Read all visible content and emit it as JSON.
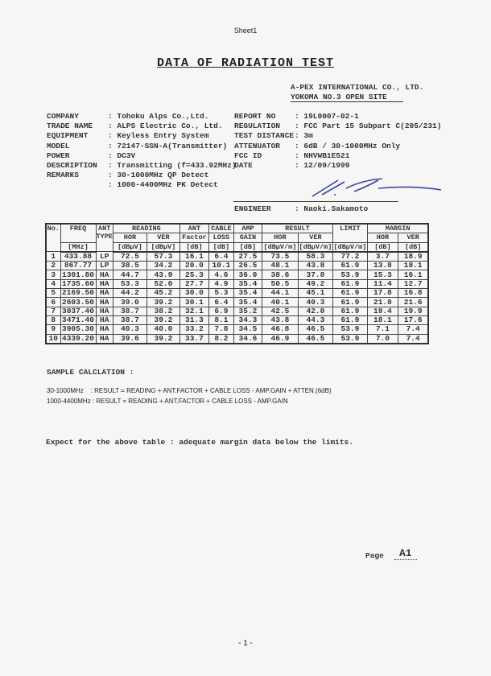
{
  "sheet": "Sheet1",
  "title": "DATA OF RADIATION TEST",
  "lab": {
    "name": "A-PEX INTERNATIONAL CO., LTD.",
    "site": "YOKOMA NO.3 OPEN SITE"
  },
  "left_info": [
    {
      "label": "COMPANY",
      "value": ": Tohoku Alps Co.,Ltd."
    },
    {
      "label": "TRADE NAME",
      "value": ": ALPS Electric Co., Ltd."
    },
    {
      "label": "EQUIPMENT",
      "value": ": Keyless Entry System"
    },
    {
      "label": "MODEL",
      "value": ": 72147-SSN-A(Transmitter)"
    },
    {
      "label": "POWER",
      "value": ": DC3V"
    },
    {
      "label": "DESCRIPTION",
      "value": ": Transmitting (f=433.92MHz)"
    },
    {
      "label": "REMARKS",
      "value": ": 30-1000MHz QP Detect"
    },
    {
      "label": "",
      "value": ": 1000-4400MHz PK Detect"
    }
  ],
  "right_info": [
    {
      "label": "REPORT NO",
      "value": ": 19L0007-02-1"
    },
    {
      "label": "REGULATION",
      "value": ": FCC Part 15 Subpart C(205/231)"
    },
    {
      "label": "TEST DISTANCE",
      "value": ": 3m"
    },
    {
      "label": "ATTENUATOR",
      "value": ": 6dB / 30-1000MHz Only"
    },
    {
      "label": "FCC ID",
      "value": ": NHVWB1E521"
    },
    {
      "label": "DATE",
      "value": ": 12/09/1999"
    }
  ],
  "engineer": {
    "label": "ENGINEER",
    "value": ": Naoki.Sakamoto"
  },
  "table": {
    "headers": {
      "no": "No.",
      "freq": "FREQ",
      "freq_unit": "[MHz]",
      "ant": "ANT",
      "ant2": "TYPE",
      "reading": "READING",
      "hor": "HOR",
      "ver": "VER",
      "dbuv": "[dBμV]",
      "antf": "ANT",
      "antf2": "Factor",
      "db": "[dB]",
      "cable": "CABLE",
      "cable2": "LOSS",
      "amp": "AMP",
      "amp2": "GAIN",
      "result": "RESULT",
      "dbuvm": "[dBμV/m]",
      "limit": "LIMIT",
      "margin": "MARGIN"
    },
    "rows": [
      [
        "1",
        "433.88",
        "LP",
        "72.5",
        "57.3",
        "16.1",
        "6.4",
        "27.5",
        "73.5",
        "58.3",
        "77.2",
        "3.7",
        "18.9"
      ],
      [
        "2",
        "867.77",
        "LP",
        "38.5",
        "34.2",
        "20.0",
        "10.1",
        "26.5",
        "48.1",
        "43.8",
        "61.9",
        "13.8",
        "18.1"
      ],
      [
        "3",
        "1301.80",
        "HA",
        "44.7",
        "43.9",
        "25.3",
        "4.6",
        "36.0",
        "38.6",
        "37.8",
        "53.9",
        "15.3",
        "16.1"
      ],
      [
        "4",
        "1735.60",
        "HA",
        "53.3",
        "52.0",
        "27.7",
        "4.9",
        "35.4",
        "50.5",
        "49.2",
        "61.9",
        "11.4",
        "12.7"
      ],
      [
        "5",
        "2169.50",
        "HA",
        "44.2",
        "45.2",
        "30.0",
        "5.3",
        "35.4",
        "44.1",
        "45.1",
        "61.9",
        "17.8",
        "16.8"
      ],
      [
        "6",
        "2603.50",
        "HA",
        "39.0",
        "39.2",
        "30.1",
        "6.4",
        "35.4",
        "40.1",
        "40.3",
        "61.9",
        "21.8",
        "21.6"
      ],
      [
        "7",
        "3037.40",
        "HA",
        "38.7",
        "38.2",
        "32.1",
        "6.9",
        "35.2",
        "42.5",
        "42.0",
        "61.9",
        "19.4",
        "19.9"
      ],
      [
        "8",
        "3471.40",
        "HA",
        "38.7",
        "39.2",
        "31.3",
        "8.1",
        "34.3",
        "43.8",
        "44.3",
        "61.9",
        "18.1",
        "17.6"
      ],
      [
        "9",
        "3905.30",
        "HA",
        "40.3",
        "40.0",
        "33.2",
        "7.8",
        "34.5",
        "46.8",
        "46.5",
        "53.9",
        "7.1",
        "7.4"
      ],
      [
        "10",
        "4339.20",
        "HA",
        "39.6",
        "39.2",
        "33.7",
        "8.2",
        "34.6",
        "46.9",
        "46.5",
        "53.9",
        "7.0",
        "7.4"
      ]
    ]
  },
  "sample": {
    "title": "SAMPLE CALCLATION :",
    "line1": "30-1000MHz    : RESULT = READING + ANT.FACTOR + CABLE LOSS - AMP.GAIN + ATTEN.(6dB)",
    "line2": "1000-4400MHz : RESULT = READING + ANT.FACTOR + CABLE LOSS - AMP.GAIN"
  },
  "note": "Expect for the above table : adequate margin data below the limits.",
  "page_label": "Page",
  "page_value": "A1",
  "footer": "- 1 -"
}
